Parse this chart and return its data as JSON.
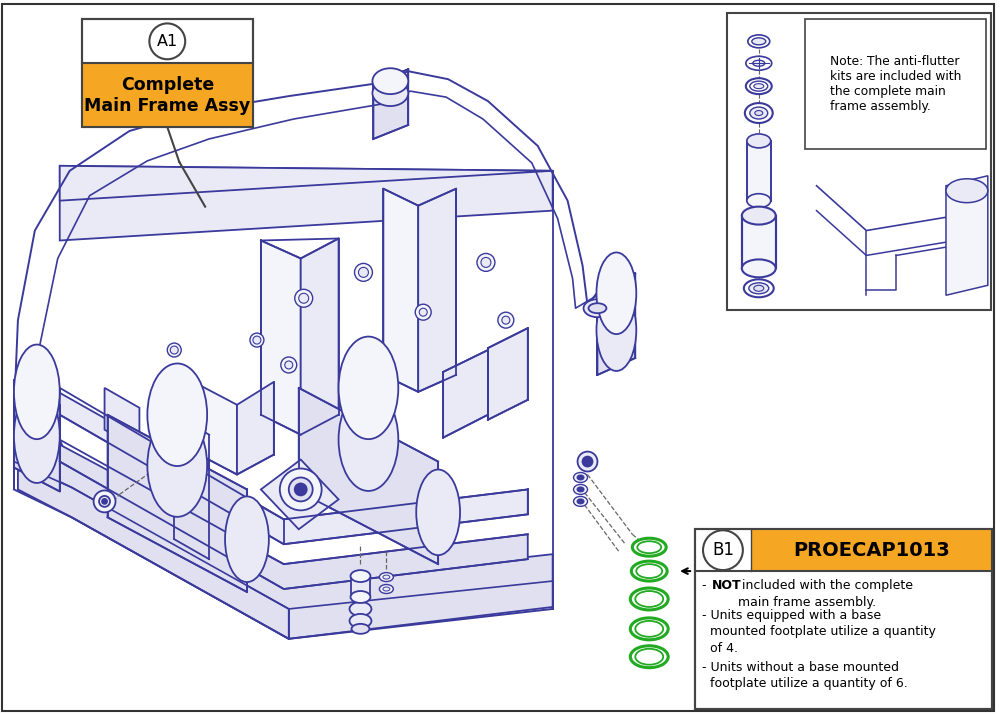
{
  "bg_color": "#ffffff",
  "drawing_color": "#3a3a9c",
  "orange_color": "#F5A623",
  "green_color": "#22aa22",
  "border_color": "#444444",
  "text_color": "#000000",
  "A1_label": "A1",
  "A1_line1": "Complete",
  "A1_line2": "Main Frame Assy",
  "B1_label": "B1",
  "B1_part": "PROECAP1013",
  "note_text": "Note: The anti-flutter\nkits are included with\nthe complete main\nframe assembly.",
  "frame_lw": 1.3,
  "dashed_color": "#666666",
  "frame_fill": "#f4f4fb",
  "frame_fill2": "#eaeaf6",
  "frame_fill3": "#e0e0f0"
}
